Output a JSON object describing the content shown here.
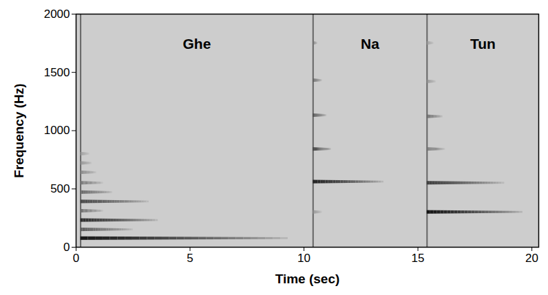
{
  "chart_data": {
    "type": "spectrogram",
    "xlabel": "Time (sec)",
    "ylabel": "Frequency (Hz)",
    "xlim": [
      0,
      20.3
    ],
    "ylim": [
      0,
      2000
    ],
    "xticks": [
      0,
      5,
      10,
      15,
      20
    ],
    "yticks": [
      0,
      500,
      1000,
      1500,
      2000
    ],
    "color": "#111111",
    "strokes": [
      {
        "name": "Ghe",
        "onset": 0.2,
        "partials": [
          {
            "frequency": 75,
            "end": 9.3,
            "level": 0.95
          },
          {
            "frequency": 150,
            "end": 2.5,
            "level": 0.6
          },
          {
            "frequency": 230,
            "end": 3.6,
            "level": 0.85
          },
          {
            "frequency": 310,
            "end": 1.2,
            "level": 0.5
          },
          {
            "frequency": 390,
            "end": 3.2,
            "level": 0.7
          },
          {
            "frequency": 470,
            "end": 1.6,
            "level": 0.55
          },
          {
            "frequency": 550,
            "end": 1.2,
            "level": 0.45
          },
          {
            "frequency": 640,
            "end": 0.9,
            "level": 0.4
          },
          {
            "frequency": 720,
            "end": 0.7,
            "level": 0.35
          },
          {
            "frequency": 800,
            "end": 0.6,
            "level": 0.3
          }
        ]
      },
      {
        "name": "Na",
        "onset": 10.4,
        "partials": [
          {
            "frequency": 300,
            "end": 10.8,
            "level": 0.35
          },
          {
            "frequency": 560,
            "end": 13.5,
            "level": 0.9
          },
          {
            "frequency": 840,
            "end": 11.2,
            "level": 0.75
          },
          {
            "frequency": 1130,
            "end": 11.0,
            "level": 0.7
          },
          {
            "frequency": 1430,
            "end": 10.8,
            "level": 0.6
          },
          {
            "frequency": 1750,
            "end": 10.6,
            "level": 0.5
          }
        ]
      },
      {
        "name": "Tun",
        "onset": 15.4,
        "partials": [
          {
            "frequency": 300,
            "end": 19.6,
            "level": 0.98
          },
          {
            "frequency": 550,
            "end": 18.8,
            "level": 0.75
          },
          {
            "frequency": 840,
            "end": 16.2,
            "level": 0.5
          },
          {
            "frequency": 1120,
            "end": 16.1,
            "level": 0.55
          },
          {
            "frequency": 1420,
            "end": 15.8,
            "level": 0.35
          },
          {
            "frequency": 1750,
            "end": 15.7,
            "level": 0.3
          }
        ]
      }
    ]
  }
}
